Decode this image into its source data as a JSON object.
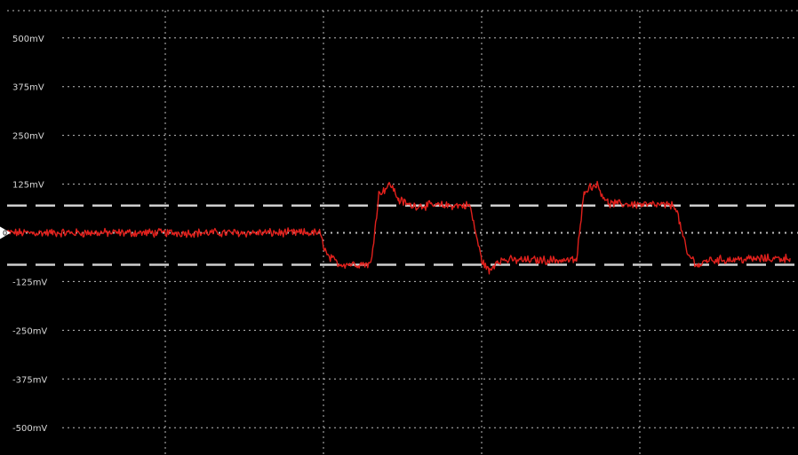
{
  "chart_data": {
    "type": "line",
    "title": "",
    "xlabel": "",
    "ylabel": "",
    "y_unit": "mV",
    "ylim": [
      -570,
      570
    ],
    "xlim": [
      0,
      10
    ],
    "grid": true,
    "grid_style": "dotted",
    "y_ticks": [
      500,
      375,
      250,
      125,
      -125,
      -250,
      -375,
      -500
    ],
    "y_tick_labels": [
      "500mV",
      "375mV",
      "250mV",
      "125mV",
      "-125mV",
      "-250mV",
      "-375mV",
      "-500mV"
    ],
    "x_divisions": [
      2,
      4,
      6,
      8
    ],
    "zero_marker": "0",
    "threshold_lines": [
      70,
      -82
    ],
    "colors": {
      "background": "#000000",
      "grid": "#bdbdbd",
      "trace": "#e0201c",
      "threshold": "#cfcfcf",
      "marker": "#ffffff",
      "label": "#d8d8d8"
    },
    "series": [
      {
        "style": "noisy-square-wave",
        "x": [
          0.0,
          3.95,
          4.05,
          4.2,
          4.6,
          4.7,
          4.85,
          4.95,
          5.1,
          5.85,
          6.0,
          6.1,
          6.2,
          7.2,
          7.3,
          7.45,
          7.6,
          8.45,
          8.6,
          8.75,
          8.85,
          9.9
        ],
        "y": [
          0,
          0,
          -60,
          -80,
          -80,
          100,
          125,
          85,
          70,
          70,
          -70,
          -100,
          -70,
          -70,
          110,
          125,
          75,
          70,
          -55,
          -85,
          -70,
          -65
        ]
      }
    ]
  }
}
